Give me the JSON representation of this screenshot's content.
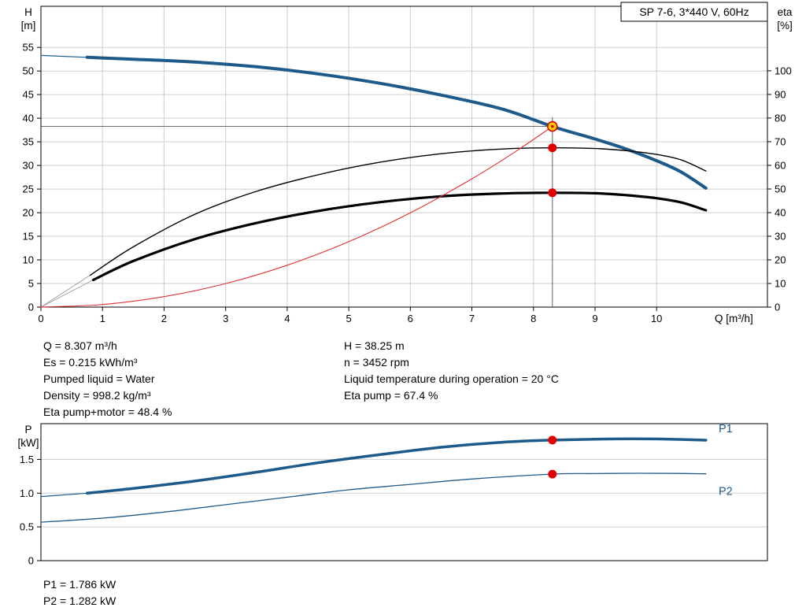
{
  "annotations": {
    "left": [
      "Q = 8.307 m³/h",
      "Es = 0.215 kWh/m³",
      "Pumped liquid = Water",
      "Density = 998.2 kg/m³",
      "Eta pump+motor = 48.4 %"
    ],
    "right": [
      "H = 38.25 m",
      "n = 3452 rpm",
      "Liquid temperature during operation = 20 °C",
      "Eta pump = 67.4 %"
    ]
  },
  "power_values": [
    "P1 = 1.786 kW",
    "P2 = 1.282 kW"
  ],
  "colors": {
    "curve_blue": "#1d5a8a",
    "duty_red": "#e00000",
    "duty_yellow": "#ffd400",
    "system_red": "#dd3333",
    "grid": "#cdcdcd"
  },
  "chart_data": [
    {
      "type": "line",
      "title": "SP 7-6, 3*440 V, 60Hz",
      "x_label": "Q [m³/h]",
      "grid": {
        "x": true,
        "y": true
      },
      "axes": {
        "x": {
          "range": [
            0,
            11.8
          ],
          "ticks": [
            [
              0,
              "0"
            ],
            [
              1,
              "1"
            ],
            [
              2,
              "2"
            ],
            [
              3,
              "3"
            ],
            [
              4,
              "4"
            ],
            [
              5,
              "5"
            ],
            [
              6,
              "6"
            ],
            [
              7,
              "7"
            ],
            [
              8,
              "8"
            ],
            [
              9,
              "9"
            ],
            [
              10,
              "10"
            ]
          ]
        },
        "left": {
          "label": [
            "H",
            "[m]"
          ],
          "range": [
            0,
            63.7
          ],
          "ticks": [
            [
              0,
              "0"
            ],
            [
              5,
              "5"
            ],
            [
              10,
              "10"
            ],
            [
              15,
              "15"
            ],
            [
              20,
              "20"
            ],
            [
              25,
              "25"
            ],
            [
              30,
              "30"
            ],
            [
              35,
              "35"
            ],
            [
              40,
              "40"
            ],
            [
              45,
              "45"
            ],
            [
              50,
              "50"
            ],
            [
              55,
              "55"
            ]
          ]
        },
        "right": {
          "label": [
            "eta",
            "[%]"
          ],
          "range": [
            0,
            127.3
          ],
          "ticks": [
            [
              0,
              "0"
            ],
            [
              10,
              "10"
            ],
            [
              20,
              "20"
            ],
            [
              30,
              "30"
            ],
            [
              40,
              "40"
            ],
            [
              50,
              "50"
            ],
            [
              60,
              "60"
            ],
            [
              70,
              "70"
            ],
            [
              80,
              "80"
            ],
            [
              90,
              "90"
            ],
            [
              100,
              "100"
            ]
          ]
        }
      },
      "series": [
        {
          "name": "head-curve-leadin",
          "axis": "left",
          "color": "#1d5a8a",
          "width": 1.2,
          "points": [
            [
              0,
              53.3
            ],
            [
              0.75,
              52.9
            ]
          ]
        },
        {
          "name": "head-curve",
          "axis": "left",
          "color": "#1d5a8a",
          "width": 4,
          "points": [
            [
              0.75,
              52.9
            ],
            [
              1.5,
              52.5
            ],
            [
              2.5,
              51.9
            ],
            [
              3.5,
              50.9
            ],
            [
              4.5,
              49.4
            ],
            [
              5.5,
              47.4
            ],
            [
              6.5,
              44.9
            ],
            [
              7.5,
              41.9
            ],
            [
              8.307,
              38.25
            ],
            [
              9,
              35.6
            ],
            [
              9.5,
              33.5
            ],
            [
              10,
              31.0
            ],
            [
              10.4,
              28.6
            ],
            [
              10.8,
              25.2
            ]
          ]
        },
        {
          "name": "eta-pump-leadin",
          "axis": "right",
          "color": "#9a9a9a",
          "width": 0.9,
          "points": [
            [
              0,
              0
            ],
            [
              0.8,
              13.5
            ]
          ]
        },
        {
          "name": "eta-pump-curve",
          "axis": "right",
          "color": "#000000",
          "width": 1.4,
          "points": [
            [
              0.8,
              13.5
            ],
            [
              1.5,
              25.5
            ],
            [
              2.5,
              39.3
            ],
            [
              3.5,
              49.0
            ],
            [
              4.5,
              56.0
            ],
            [
              5.5,
              61.3
            ],
            [
              6.5,
              64.9
            ],
            [
              7.5,
              66.9
            ],
            [
              8.307,
              67.4
            ],
            [
              9,
              67.1
            ],
            [
              9.5,
              66.2
            ],
            [
              10,
              64.6
            ],
            [
              10.4,
              62.3
            ],
            [
              10.8,
              57.6
            ]
          ]
        },
        {
          "name": "eta-pump-motor-leadin",
          "axis": "right",
          "color": "#9a9a9a",
          "width": 0.9,
          "points": [
            [
              0,
              0
            ],
            [
              0.85,
              11.5
            ]
          ]
        },
        {
          "name": "eta-pump-motor-curve",
          "axis": "right",
          "color": "#000000",
          "width": 3.2,
          "points": [
            [
              0.85,
              11.5
            ],
            [
              1.5,
              19.5
            ],
            [
              2.5,
              28.8
            ],
            [
              3.5,
              35.6
            ],
            [
              4.5,
              40.7
            ],
            [
              5.5,
              44.4
            ],
            [
              6.5,
              46.9
            ],
            [
              7.5,
              48.1
            ],
            [
              8.307,
              48.4
            ],
            [
              9,
              48.2
            ],
            [
              9.5,
              47.4
            ],
            [
              10,
              46.1
            ],
            [
              10.4,
              44.3
            ],
            [
              10.8,
              41.0
            ]
          ]
        },
        {
          "name": "system-curve",
          "axis": "left",
          "color": "#dd3333",
          "width": 1.1,
          "points": [
            [
              0,
              0
            ],
            [
              1,
              0.55
            ],
            [
              2,
              2.22
            ],
            [
              3,
              4.99
            ],
            [
              4,
              8.87
            ],
            [
              5,
              13.86
            ],
            [
              6,
              19.96
            ],
            [
              7,
              27.17
            ],
            [
              7.7,
              32.86
            ],
            [
              8.307,
              38.25
            ]
          ]
        }
      ],
      "crosshair": {
        "q": 8.307,
        "v": 38.25
      },
      "markers": [
        {
          "name": "eta-pump-duty-dot",
          "q": 8.307,
          "v": 67.4,
          "axis": "right",
          "r": 5.5,
          "fill": "#e00000"
        },
        {
          "name": "eta-pump-motor-duty-dot",
          "q": 8.307,
          "v": 48.4,
          "axis": "right",
          "r": 5.5,
          "fill": "#e00000"
        },
        {
          "name": "duty-point",
          "q": 8.307,
          "v": 38.25,
          "axis": "left",
          "r": 6,
          "fill": "#ffd400",
          "stroke": "#e00000",
          "sw": 1.6
        },
        {
          "name": "duty-point-center",
          "q": 8.307,
          "v": 38.25,
          "axis": "left",
          "r": 1.8,
          "fill": "#e00000"
        }
      ]
    },
    {
      "type": "line",
      "grid": {
        "x": false,
        "y": true
      },
      "axes": {
        "x": {
          "range": [
            0,
            11.8
          ],
          "ticks": []
        },
        "left": {
          "label": [
            "P",
            "[kW]"
          ],
          "range": [
            0,
            2.03
          ],
          "ticks": [
            [
              0,
              "0"
            ],
            [
              0.5,
              "0.5"
            ],
            [
              1,
              "1.0"
            ],
            [
              1.5,
              "1.5"
            ]
          ]
        }
      },
      "series": [
        {
          "name": "p1-curve-leadin",
          "axis": "left",
          "color": "#1d5a8a",
          "width": 1.2,
          "points": [
            [
              0,
              0.95
            ],
            [
              0.75,
              1.0
            ]
          ]
        },
        {
          "name": "p1-curve",
          "axis": "left",
          "color": "#1d5a8a",
          "width": 3.5,
          "points": [
            [
              0.75,
              1.0
            ],
            [
              1.5,
              1.07
            ],
            [
              2.5,
              1.18
            ],
            [
              3.5,
              1.31
            ],
            [
              4.5,
              1.45
            ],
            [
              5.5,
              1.57
            ],
            [
              6.5,
              1.68
            ],
            [
              7.5,
              1.755
            ],
            [
              8.307,
              1.786
            ],
            [
              9,
              1.8
            ],
            [
              9.6,
              1.805
            ],
            [
              10.2,
              1.8
            ],
            [
              10.8,
              1.785
            ]
          ],
          "end_label": {
            "text": "P1",
            "dy": -10
          }
        },
        {
          "name": "p2-curve",
          "axis": "left",
          "color": "#1d5a8a",
          "width": 1.3,
          "points": [
            [
              0,
              0.57
            ],
            [
              1,
              0.63
            ],
            [
              2,
              0.72
            ],
            [
              3,
              0.83
            ],
            [
              4,
              0.94
            ],
            [
              5,
              1.05
            ],
            [
              6,
              1.13
            ],
            [
              7,
              1.21
            ],
            [
              8.307,
              1.282
            ],
            [
              9,
              1.29
            ],
            [
              9.7,
              1.295
            ],
            [
              10.3,
              1.293
            ],
            [
              10.8,
              1.287
            ]
          ],
          "end_label": {
            "text": "P2",
            "dy": 27
          }
        }
      ],
      "markers": [
        {
          "name": "p1-duty-dot",
          "q": 8.307,
          "v": 1.786,
          "axis": "left",
          "r": 5.5,
          "fill": "#e00000"
        },
        {
          "name": "p2-duty-dot",
          "q": 8.307,
          "v": 1.282,
          "axis": "left",
          "r": 5.5,
          "fill": "#e00000"
        }
      ]
    }
  ]
}
